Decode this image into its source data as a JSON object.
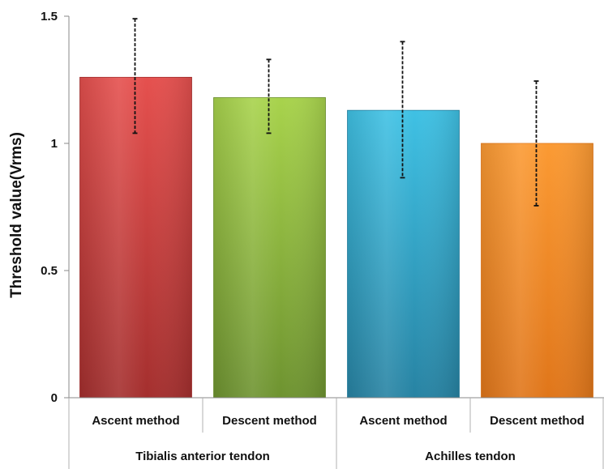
{
  "chart_data": {
    "type": "bar",
    "title": "",
    "xlabel": "",
    "ylabel": "Threshold value(Vrms)",
    "ylim": [
      0,
      1.5
    ],
    "yticks": [
      {
        "value": 0,
        "label": "0"
      },
      {
        "value": 0.5,
        "label": "0.5"
      },
      {
        "value": 1,
        "label": "1"
      },
      {
        "value": 1.5,
        "label": "1.5"
      }
    ],
    "categories": [
      "Ascent method",
      "Descent method",
      "Ascent method",
      "Descent method"
    ],
    "groups": [
      {
        "label": "Tibialis anterior tendon",
        "span": [
          0,
          1
        ]
      },
      {
        "label": "Achilles tendon",
        "span": [
          2,
          3
        ]
      }
    ],
    "values": [
      1.26,
      1.18,
      1.13,
      1.0
    ],
    "error_low": [
      1.04,
      1.04,
      0.865,
      0.755
    ],
    "error_high": [
      1.49,
      1.33,
      1.4,
      1.245
    ],
    "colors": [
      {
        "light": "#e5504e",
        "dark": "#a42f2e"
      },
      {
        "light": "#a8d34c",
        "dark": "#6e9330"
      },
      {
        "light": "#3fc1e4",
        "dark": "#2783a3"
      },
      {
        "light": "#fb9a33",
        "dark": "#e0761a"
      }
    ],
    "grid": false,
    "legend": "none"
  }
}
